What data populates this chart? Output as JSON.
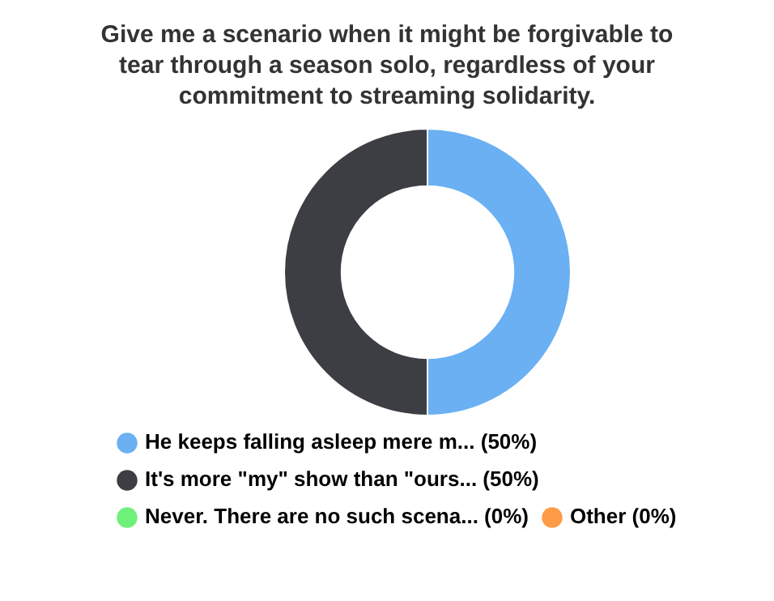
{
  "chart_data": {
    "type": "donut",
    "title": "Give me a scenario when it might be forgivable to tear through a season solo, regardless of your commitment to streaming solidarity.",
    "categories": [
      "He keeps falling asleep mere m...",
      "It's more \"my\" show than \"ours...",
      "Never. There are no such scena...",
      "Other"
    ],
    "values": [
      50,
      50,
      0,
      0
    ],
    "colors": [
      "#6ab0f3",
      "#3d3e44",
      "#6ef07a",
      "#fd9b46"
    ],
    "value_labels": [
      "(50%)",
      "(50%)",
      "(0%)",
      "(0%)"
    ],
    "legend": "bottom"
  }
}
